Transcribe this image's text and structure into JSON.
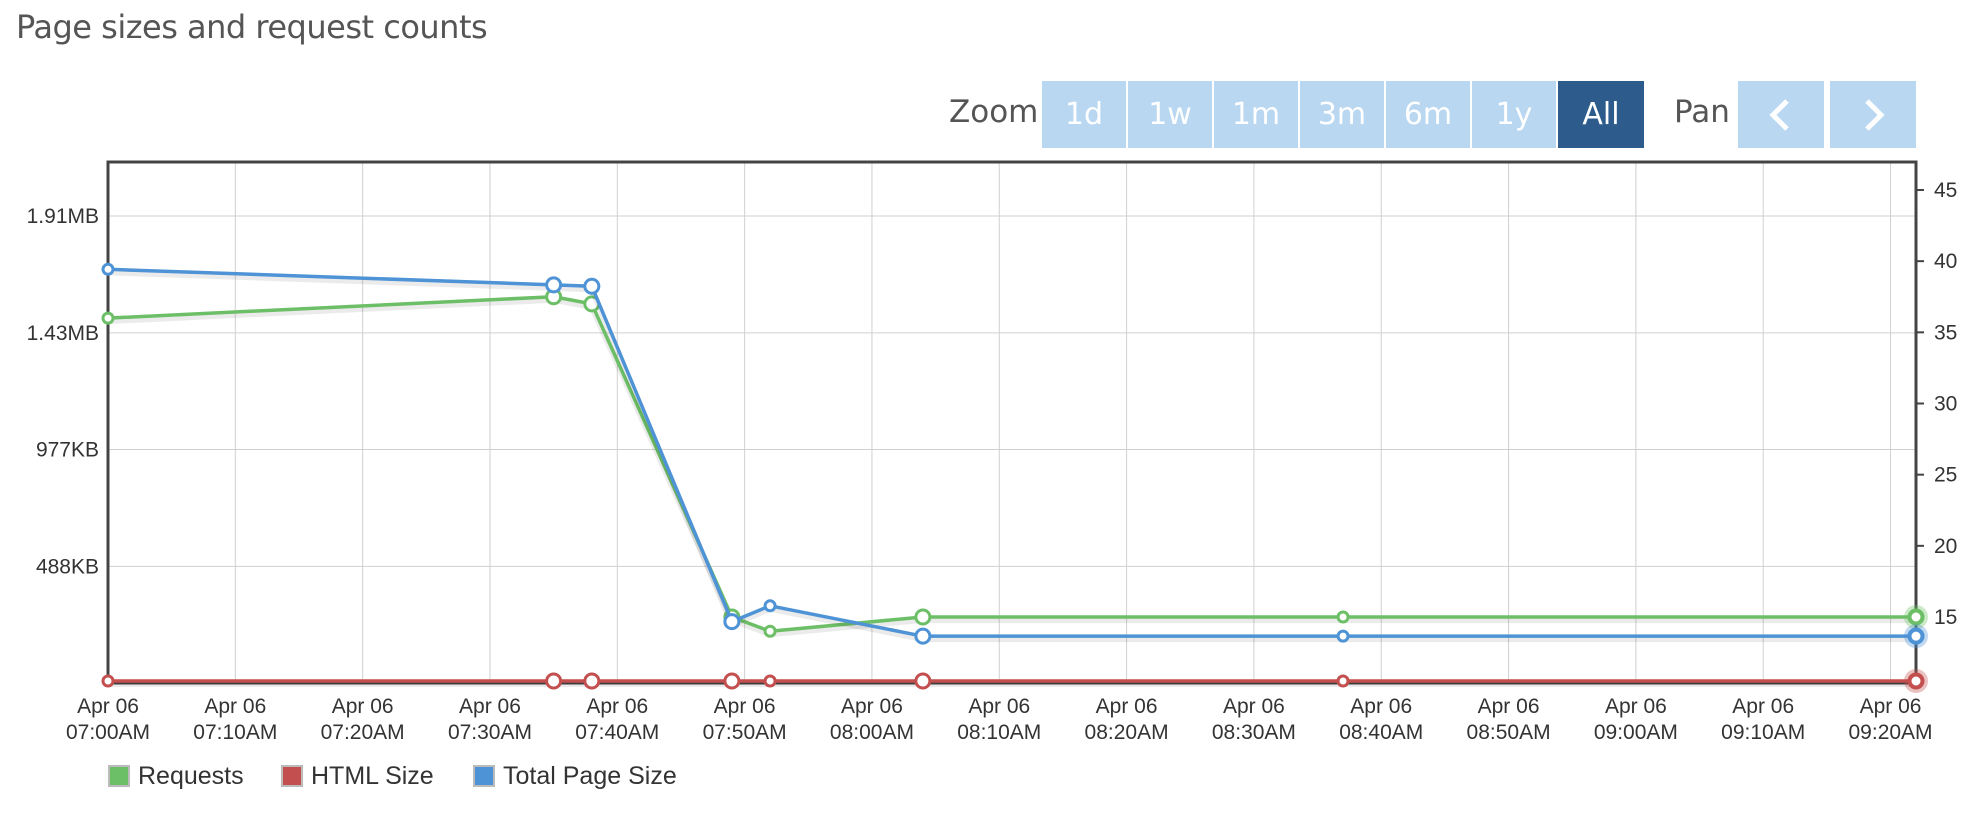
{
  "page": {
    "title": "Page sizes and request counts"
  },
  "toolbar": {
    "zoom_label": "Zoom",
    "zoom_buttons": [
      "1d",
      "1w",
      "1m",
      "3m",
      "6m",
      "1y",
      "All"
    ],
    "zoom_active": "All",
    "pan_label": "Pan"
  },
  "colors": {
    "requests": "#6dbf67",
    "html_size": "#c44f4f",
    "total_page_size": "#4e93d6",
    "grid": "#d0d0d0",
    "frame": "#444444",
    "zoom_button": "#b9d7f1",
    "zoom_active": "#2c5b8c"
  },
  "chart_data": {
    "type": "line",
    "x_ticks": [
      [
        "Apr 06",
        "07:00AM"
      ],
      [
        "Apr 06",
        "07:10AM"
      ],
      [
        "Apr 06",
        "07:20AM"
      ],
      [
        "Apr 06",
        "07:30AM"
      ],
      [
        "Apr 06",
        "07:40AM"
      ],
      [
        "Apr 06",
        "07:50AM"
      ],
      [
        "Apr 06",
        "08:00AM"
      ],
      [
        "Apr 06",
        "08:10AM"
      ],
      [
        "Apr 06",
        "08:20AM"
      ],
      [
        "Apr 06",
        "08:30AM"
      ],
      [
        "Apr 06",
        "08:40AM"
      ],
      [
        "Apr 06",
        "08:50AM"
      ],
      [
        "Apr 06",
        "09:00AM"
      ],
      [
        "Apr 06",
        "09:10AM"
      ],
      [
        "Apr 06",
        "09:20AM"
      ]
    ],
    "x_tick_times": [
      "07:00",
      "07:10",
      "07:20",
      "07:30",
      "07:40",
      "07:50",
      "08:00",
      "08:10",
      "08:20",
      "08:30",
      "08:40",
      "08:50",
      "09:00",
      "09:10",
      "09:20"
    ],
    "x_range": [
      "07:00",
      "09:22"
    ],
    "y_left": {
      "ticks": [
        488,
        977,
        1465,
        1954
      ],
      "tick_labels": [
        "488KB",
        "977KB",
        "1.43MB",
        "1.91MB"
      ],
      "unit": "KB",
      "range": [
        0,
        1954
      ]
    },
    "y_right": {
      "ticks": [
        15,
        20,
        25,
        30,
        35,
        40,
        45
      ],
      "tick_labels": [
        "15",
        "20",
        "25",
        "30",
        "35",
        "40",
        "45"
      ],
      "range": [
        11.5,
        45
      ]
    },
    "grid": true,
    "legend_position": "bottom-left",
    "series": [
      {
        "name": "Requests",
        "axis": "right",
        "x": [
          "07:00",
          "07:35",
          "07:38",
          "07:49",
          "07:52",
          "08:04",
          "08:37",
          "09:22"
        ],
        "y": [
          36,
          37.5,
          37,
          15,
          14,
          15,
          15,
          15
        ]
      },
      {
        "name": "HTML Size",
        "axis": "left",
        "x": [
          "07:00",
          "07:35",
          "07:38",
          "07:49",
          "07:52",
          "08:04",
          "08:37",
          "09:22"
        ],
        "y": [
          0,
          0,
          0,
          0,
          0,
          0,
          0,
          0
        ]
      },
      {
        "name": "Total Page Size",
        "axis": "left",
        "x": [
          "07:00",
          "07:35",
          "07:38",
          "07:49",
          "07:52",
          "08:04",
          "08:37",
          "09:22"
        ],
        "y": [
          1731,
          1666,
          1660,
          257,
          323,
          196,
          196,
          196
        ]
      }
    ]
  }
}
